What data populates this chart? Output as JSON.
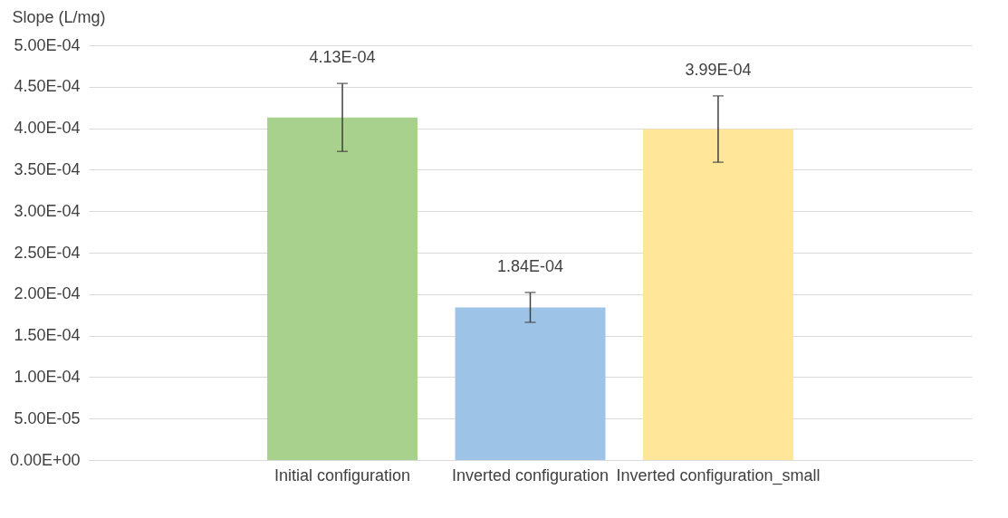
{
  "chart_data": {
    "type": "bar",
    "ylabel": "Slope (L/mg)",
    "categories": [
      "Initial configuration",
      "Inverted configuration",
      "Inverted configuration_small"
    ],
    "values": [
      0.000413,
      0.000184,
      0.000399
    ],
    "colors": [
      "#a9d18e",
      "#9dc3e6",
      "#ffe699"
    ],
    "errors": [
      4.1e-05,
      1.8e-05,
      4e-05
    ],
    "value_labels": [
      "4.13E-04",
      "1.84E-04",
      "3.99E-04"
    ],
    "ylim": [
      0,
      0.0005
    ],
    "yticks": [
      {
        "value": 0,
        "label": "0.00E+00"
      },
      {
        "value": 5e-05,
        "label": "5.00E-05"
      },
      {
        "value": 0.0001,
        "label": "1.00E-04"
      },
      {
        "value": 0.00015,
        "label": "1.50E-04"
      },
      {
        "value": 0.0002,
        "label": "2.00E-04"
      },
      {
        "value": 0.00025,
        "label": "2.50E-04"
      },
      {
        "value": 0.0003,
        "label": "3.00E-04"
      },
      {
        "value": 0.00035,
        "label": "3.50E-04"
      },
      {
        "value": 0.0004,
        "label": "4.00E-04"
      },
      {
        "value": 0.00045,
        "label": "4.50E-04"
      },
      {
        "value": 0.0005,
        "label": "5.00E-04"
      }
    ],
    "grid": "y",
    "legend": false
  }
}
